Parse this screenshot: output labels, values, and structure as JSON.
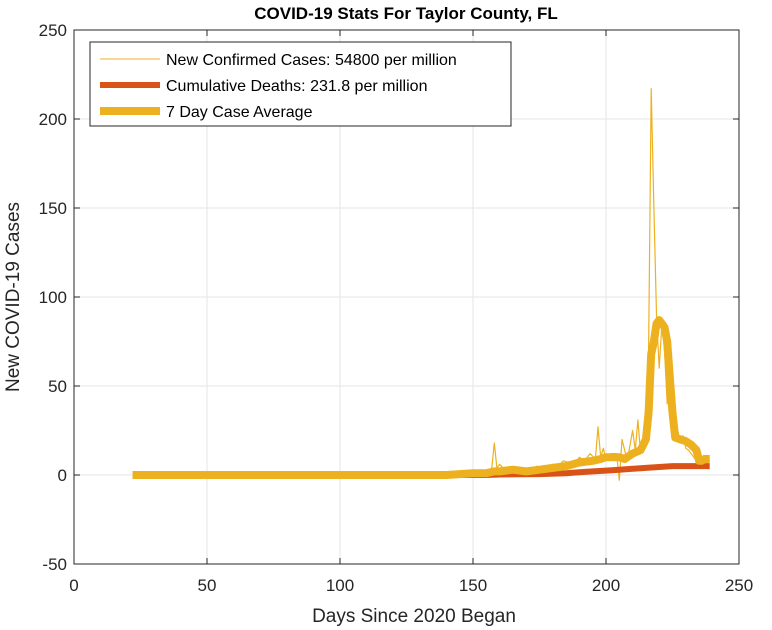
{
  "chart_data": {
    "type": "line",
    "title": "COVID-19 Stats For Taylor County, FL",
    "xlabel": "Days Since 2020 Began",
    "ylabel": "New COVID-19 Cases",
    "xlim": [
      0,
      250
    ],
    "ylim": [
      -50,
      250
    ],
    "xticks": [
      "0",
      "50",
      "100",
      "150",
      "200",
      "250"
    ],
    "yticks": [
      "-50",
      "0",
      "50",
      "100",
      "150",
      "200",
      "250"
    ],
    "grid": true,
    "legend_position": "top-left",
    "series": [
      {
        "name": "New Confirmed Cases: 54800 per million",
        "color": "#EDB120",
        "style": "thin",
        "x": [
          22,
          60,
          100,
          120,
          130,
          140,
          145,
          150,
          152,
          155,
          157,
          158,
          159,
          160,
          162,
          164,
          166,
          168,
          170,
          172,
          174,
          176,
          178,
          180,
          182,
          184,
          186,
          188,
          190,
          192,
          194,
          196,
          197,
          198,
          199,
          200,
          202,
          204,
          205,
          206,
          208,
          210,
          211,
          212,
          213,
          214,
          215,
          216,
          217,
          218,
          219,
          220,
          221,
          222,
          223,
          224,
          225,
          226,
          227,
          228,
          229,
          230,
          231,
          232,
          233,
          234,
          235,
          236,
          237,
          238,
          239
        ],
        "y": [
          0,
          0,
          0,
          0,
          0,
          0,
          1,
          2,
          1,
          2,
          3,
          18,
          4,
          6,
          3,
          2,
          4,
          1,
          3,
          2,
          5,
          3,
          4,
          6,
          5,
          8,
          7,
          6,
          10,
          8,
          12,
          9,
          27,
          10,
          15,
          9,
          12,
          12,
          -3,
          20,
          8,
          25,
          14,
          31,
          12,
          20,
          35,
          70,
          217,
          150,
          90,
          60,
          85,
          70,
          40,
          45,
          44,
          20,
          25,
          18,
          22,
          15,
          14,
          12,
          10,
          8,
          8,
          7,
          9,
          10,
          8
        ]
      },
      {
        "name": "Cumulative Deaths: 231.8 per million",
        "color": "#D95319",
        "style": "thick",
        "x": [
          22,
          100,
          130,
          145,
          155,
          160,
          175,
          185,
          190,
          195,
          200,
          205,
          210,
          215,
          220,
          225,
          230,
          235,
          239
        ],
        "y": [
          0,
          0,
          0,
          0,
          0,
          0.3,
          0.5,
          1,
          1.5,
          2,
          2.5,
          3,
          3.5,
          4,
          4.5,
          5,
          5,
          5,
          5
        ]
      },
      {
        "name": "7 Day Case Average",
        "color": "#EDB120",
        "style": "thicker",
        "x": [
          22,
          60,
          100,
          120,
          130,
          140,
          150,
          155,
          158,
          160,
          165,
          170,
          175,
          180,
          185,
          190,
          195,
          198,
          200,
          205,
          207,
          210,
          213,
          215,
          216,
          217,
          218,
          219,
          220,
          221,
          222,
          223,
          224,
          225,
          226,
          228,
          230,
          232,
          234,
          235,
          236,
          237,
          238,
          239
        ],
        "y": [
          0,
          0,
          0,
          0,
          0,
          0,
          1,
          1,
          2,
          2,
          3,
          2,
          3,
          4,
          5,
          7,
          8,
          9,
          10,
          10,
          9,
          12,
          14,
          20,
          35,
          68,
          75,
          85,
          87,
          85,
          83,
          75,
          55,
          35,
          21,
          20,
          19,
          17,
          14,
          8,
          8,
          9,
          9,
          9
        ]
      }
    ]
  }
}
